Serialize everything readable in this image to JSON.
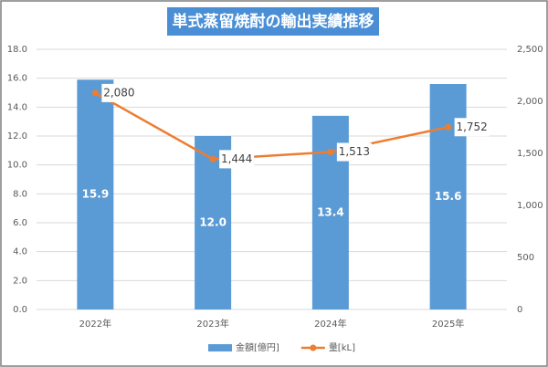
{
  "chart_data": {
    "type": "bar",
    "title": "単式蒸留焼酎の輸出実績推移",
    "categories": [
      "2022年",
      "2023年",
      "2024年",
      "2025年"
    ],
    "series": [
      {
        "name": "金額[億円]",
        "type": "bar",
        "color": "#5b9bd5",
        "values": [
          15.9,
          12.0,
          13.4,
          15.6
        ],
        "value_labels": [
          "15.9",
          "12.0",
          "13.4",
          "15.6"
        ]
      },
      {
        "name": "量[kL]",
        "type": "line",
        "axis": "y2",
        "color": "#ed7d31",
        "values": [
          2080,
          1444,
          1513,
          1752
        ],
        "value_labels": [
          "2,080",
          "1,444",
          "1,513",
          "1,752"
        ]
      }
    ],
    "ylim": [
      0,
      18
    ],
    "yticks": [
      {
        "value": 0,
        "label": "0.0"
      },
      {
        "value": 2,
        "label": "2.0"
      },
      {
        "value": 4,
        "label": "4.0"
      },
      {
        "value": 6,
        "label": "6.0"
      },
      {
        "value": 8,
        "label": "8.0"
      },
      {
        "value": 10,
        "label": "10.0"
      },
      {
        "value": 12,
        "label": "12.0"
      },
      {
        "value": 14,
        "label": "14.0"
      },
      {
        "value": 16,
        "label": "16.0"
      },
      {
        "value": 18,
        "label": "18.0"
      }
    ],
    "y2lim": [
      0,
      2500
    ],
    "y2ticks": [
      0,
      500,
      {
        "value": 1000,
        "label": "1,000"
      },
      {
        "value": 1500,
        "label": "1,500"
      },
      {
        "value": 2000,
        "label": "2,000"
      },
      {
        "value": 2500,
        "label": "2,500"
      }
    ],
    "grid": true,
    "legend": "bottom"
  }
}
